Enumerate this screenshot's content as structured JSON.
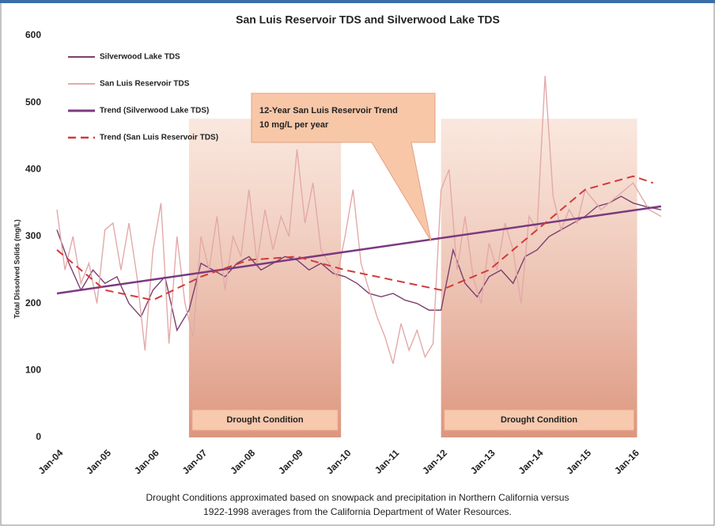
{
  "chart_data": {
    "type": "line",
    "title": "San Luis Reservoir TDS and Silverwood Lake TDS",
    "ylabel": "Total Dissolved Solids (mg/L)",
    "ylim": [
      0,
      600
    ],
    "yticks": [
      0,
      100,
      200,
      300,
      400,
      500,
      600
    ],
    "xlim": [
      "2004-01",
      "2016-10"
    ],
    "xticks": [
      {
        "value": "2004-01",
        "label": "Jan-04"
      },
      {
        "value": "2005-01",
        "label": "Jan-05"
      },
      {
        "value": "2006-01",
        "label": "Jan-06"
      },
      {
        "value": "2007-01",
        "label": "Jan-07"
      },
      {
        "value": "2008-01",
        "label": "Jan-08"
      },
      {
        "value": "2009-01",
        "label": "Jan-09"
      },
      {
        "value": "2010-01",
        "label": "Jan-10"
      },
      {
        "value": "2011-01",
        "label": "Jan-11"
      },
      {
        "value": "2012-01",
        "label": "Jan-12"
      },
      {
        "value": "2013-01",
        "label": "Jan-13"
      },
      {
        "value": "2014-01",
        "label": "Jan-14"
      },
      {
        "value": "2015-01",
        "label": "Jan-15"
      },
      {
        "value": "2016-01",
        "label": "Jan-16"
      }
    ],
    "grid": false,
    "legend": "upper left",
    "drought_periods": [
      {
        "start": "2006-10",
        "end": "2009-12",
        "label": "Drought Condition"
      },
      {
        "start": "2012-01",
        "end": "2016-02",
        "label": "Drought Condition"
      }
    ],
    "annotation": [
      "12-Year San Luis Reservoir Trend",
      "10 mg/L per year"
    ],
    "footnote": [
      "Drought Conditions approximated based on snowpack and precipitation in Northern California versus",
      "1922-1998 averages from the California Department of Water Resources."
    ],
    "series": [
      {
        "name": "Silverwood Lake TDS",
        "color": "#7b3f6e",
        "style": "solid",
        "x": [
          "2004-01",
          "2004-04",
          "2004-07",
          "2004-10",
          "2005-01",
          "2005-04",
          "2005-07",
          "2005-10",
          "2006-01",
          "2006-04",
          "2006-07",
          "2006-10",
          "2007-01",
          "2007-04",
          "2007-07",
          "2007-10",
          "2008-01",
          "2008-04",
          "2008-07",
          "2008-10",
          "2009-01",
          "2009-04",
          "2009-07",
          "2009-10",
          "2010-01",
          "2010-04",
          "2010-07",
          "2010-10",
          "2011-01",
          "2011-04",
          "2011-07",
          "2011-10",
          "2012-01",
          "2012-04",
          "2012-07",
          "2012-10",
          "2013-01",
          "2013-04",
          "2013-07",
          "2013-10",
          "2014-01",
          "2014-04",
          "2014-07",
          "2014-10",
          "2015-01",
          "2015-04",
          "2015-07",
          "2015-10",
          "2016-01",
          "2016-04",
          "2016-08"
        ],
        "values": [
          310,
          260,
          220,
          250,
          230,
          240,
          200,
          180,
          220,
          240,
          160,
          190,
          260,
          250,
          240,
          260,
          270,
          250,
          260,
          270,
          265,
          250,
          260,
          245,
          240,
          230,
          215,
          210,
          215,
          205,
          200,
          190,
          190,
          280,
          230,
          210,
          240,
          250,
          230,
          270,
          280,
          300,
          310,
          320,
          330,
          345,
          350,
          360,
          350,
          345,
          340
        ]
      },
      {
        "name": "San Luis Reservoir TDS",
        "color": "#e3a9a9",
        "style": "solid",
        "x": [
          "2004-01",
          "2004-03",
          "2004-05",
          "2004-07",
          "2004-09",
          "2004-11",
          "2005-01",
          "2005-03",
          "2005-05",
          "2005-07",
          "2005-09",
          "2005-11",
          "2006-01",
          "2006-03",
          "2006-05",
          "2006-07",
          "2006-09",
          "2006-11",
          "2007-01",
          "2007-03",
          "2007-05",
          "2007-07",
          "2007-09",
          "2007-11",
          "2008-01",
          "2008-03",
          "2008-05",
          "2008-07",
          "2008-09",
          "2008-11",
          "2009-01",
          "2009-03",
          "2009-05",
          "2009-07",
          "2009-09",
          "2009-11",
          "2010-01",
          "2010-03",
          "2010-05",
          "2010-07",
          "2010-09",
          "2010-11",
          "2011-01",
          "2011-03",
          "2011-05",
          "2011-07",
          "2011-09",
          "2011-11",
          "2012-01",
          "2012-03",
          "2012-05",
          "2012-07",
          "2012-09",
          "2012-11",
          "2013-01",
          "2013-03",
          "2013-05",
          "2013-07",
          "2013-09",
          "2013-11",
          "2014-01",
          "2014-03",
          "2014-05",
          "2014-07",
          "2014-09",
          "2014-11",
          "2015-01",
          "2015-05",
          "2015-09",
          "2016-01",
          "2016-05",
          "2016-08"
        ],
        "values": [
          340,
          250,
          300,
          230,
          260,
          200,
          310,
          320,
          250,
          320,
          240,
          130,
          280,
          350,
          140,
          300,
          200,
          150,
          300,
          250,
          330,
          220,
          300,
          270,
          370,
          260,
          340,
          280,
          330,
          300,
          430,
          320,
          380,
          280,
          260,
          240,
          300,
          370,
          260,
          220,
          180,
          150,
          110,
          170,
          130,
          160,
          120,
          140,
          370,
          400,
          250,
          330,
          240,
          200,
          290,
          250,
          320,
          280,
          200,
          330,
          310,
          540,
          360,
          310,
          340,
          320,
          370,
          340,
          360,
          380,
          340,
          330
        ]
      },
      {
        "name": "Trend (Silverwood Lake TDS)",
        "color": "#7a3a80",
        "style": "thick",
        "x": [
          "2004-01",
          "2016-08"
        ],
        "values": [
          215,
          345
        ]
      },
      {
        "name": "Trend (San Luis Reservoir TDS)",
        "color": "#d23a3a",
        "style": "dashed",
        "x": [
          "2004-01",
          "2005-01",
          "2006-01",
          "2007-01",
          "2008-01",
          "2009-01",
          "2010-01",
          "2011-01",
          "2012-01",
          "2013-01",
          "2014-01",
          "2015-01",
          "2016-01",
          "2016-06"
        ],
        "values": [
          280,
          220,
          205,
          240,
          265,
          270,
          250,
          235,
          220,
          250,
          310,
          370,
          390,
          380
        ]
      }
    ]
  }
}
